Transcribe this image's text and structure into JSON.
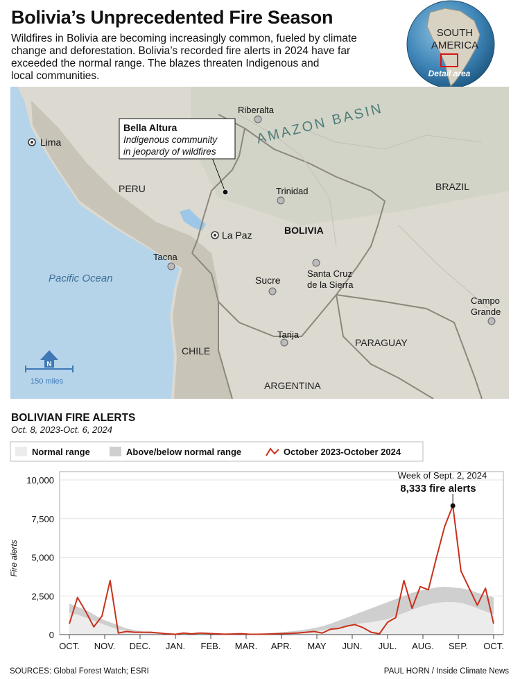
{
  "header": {
    "title": "Bolivia’s Unprecedented Fire Season",
    "intro_lines": [
      "Wildfires in Bolivia are becoming increasingly common, fueled by climate",
      "change and deforestation. Bolivia’s recorded fire alerts in 2024 have far",
      "exceeded the normal range. The blazes threaten Indigenous and",
      "local communities."
    ]
  },
  "locator": {
    "label_line1": "SOUTH",
    "label_line2": "AMERICA",
    "detail_label": "Detail area"
  },
  "map": {
    "region_label": "AMAZON BASIN",
    "ocean_label": "Pacific Ocean",
    "countries": {
      "peru": "PERU",
      "bolivia": "BOLIVIA",
      "brazil": "BRAZIL",
      "chile": "CHILE",
      "paraguay": "PARAGUAY",
      "argentina": "ARGENTINA"
    },
    "cities": {
      "lima": "Lima",
      "riberalta": "Riberalta",
      "trinidad": "Trinidad",
      "la_paz": "La Paz",
      "tacna": "Tacna",
      "sucre": "Sucre",
      "santa_cruz_1": "Santa Cruz",
      "santa_cruz_2": "de la Sierra",
      "campo_1": "Campo",
      "campo_2": "Grande",
      "tarija": "Tarija"
    },
    "callout": {
      "title": "Bella Altura",
      "line1": "Indigenous community",
      "line2": "in jeopardy of wildfires"
    },
    "scale_label": "150 miles",
    "north_label": "N"
  },
  "chart_data": {
    "type": "area",
    "title": "BOLIVIAN FIRE ALERTS",
    "subtitle": "Oct. 8, 2023-Oct. 6, 2024",
    "ylabel": "Fire alerts",
    "ylim": [
      0,
      10000
    ],
    "yticks": [
      "10,000",
      "7,500",
      "5,000",
      "2,500",
      "0"
    ],
    "ytick_values": [
      10000,
      7500,
      5000,
      2500,
      0
    ],
    "xticks": [
      "OCT.",
      "NOV.",
      "DEC.",
      "JAN.",
      "FEB.",
      "MAR.",
      "APR.",
      "MAY",
      "JUN.",
      "JUL.",
      "AUG.",
      "SEP.",
      "OCT."
    ],
    "legend": [
      "Normal range",
      "Above/below normal range",
      "October 2023-October 2024"
    ],
    "annotation": {
      "line1": "Week of Sept. 2, 2024",
      "line2": "8,333 fire alerts",
      "week": 47,
      "value": 8333
    },
    "weeks": 53,
    "series": [
      {
        "name": "October 2023-October 2024",
        "color": "#c8311c",
        "values": [
          700,
          2400,
          1500,
          500,
          1200,
          3500,
          100,
          200,
          150,
          150,
          150,
          100,
          50,
          20,
          100,
          50,
          100,
          80,
          50,
          30,
          40,
          60,
          30,
          20,
          30,
          50,
          70,
          80,
          100,
          150,
          200,
          100,
          350,
          400,
          550,
          650,
          450,
          150,
          50,
          800,
          1100,
          3500,
          1700,
          3100,
          2900,
          5000,
          7000,
          8333,
          4100,
          3000,
          1900,
          3000,
          700
        ]
      }
    ],
    "normal_range": {
      "lower": [
        1400,
        1300,
        1100,
        900,
        700,
        500,
        350,
        250,
        150,
        100,
        70,
        50,
        40,
        30,
        25,
        20,
        20,
        20,
        20,
        20,
        20,
        25,
        30,
        35,
        45,
        60,
        80,
        100,
        130,
        170,
        220,
        280,
        380,
        450,
        550,
        650,
        750,
        800,
        900,
        1000,
        1200,
        1400,
        1600,
        1800,
        1950,
        2050,
        2100,
        2100,
        2050,
        1900,
        1700,
        1500,
        1300
      ],
      "upper": [
        2000,
        1800,
        1600,
        1300,
        1000,
        800,
        600,
        400,
        300,
        200,
        150,
        100,
        80,
        60,
        50,
        40,
        40,
        40,
        40,
        40,
        40,
        50,
        60,
        70,
        90,
        110,
        150,
        200,
        260,
        330,
        420,
        540,
        700,
        900,
        1100,
        1300,
        1500,
        1700,
        1900,
        2100,
        2300,
        2500,
        2700,
        2850,
        2950,
        3050,
        3100,
        3050,
        3000,
        2900,
        2700,
        2550,
        2400
      ]
    }
  },
  "footer": {
    "sources": "SOURCES: Global Forest Watch; ESRI",
    "credit": "PAUL HORN / Inside Climate News"
  }
}
